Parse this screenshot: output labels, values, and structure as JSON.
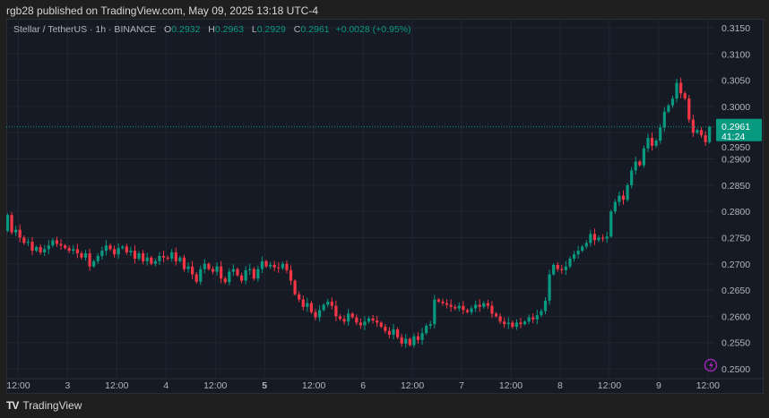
{
  "header": {
    "published": "rgb28 published on TradingView.com, May 09, 2025 13:18 UTC-4"
  },
  "legend": {
    "symbol": "Stellar / TetherUS · 1h · BINANCE",
    "o_label": "O",
    "o": "0.2932",
    "h_label": "H",
    "h": "0.2963",
    "l_label": "L",
    "l": "0.2929",
    "c_label": "C",
    "c": "0.2961",
    "change": "+0.0028 (+0.95%)"
  },
  "price_tag": {
    "price": "0.2961",
    "countdown": "41:24"
  },
  "footer": {
    "brand": "TradingView"
  },
  "colors": {
    "up": "#089981",
    "down": "#f23645",
    "background": "#161a25",
    "grid": "#222631",
    "alert_icon": "#9c27b0"
  },
  "chart_data": {
    "type": "candlestick",
    "interval": "1h",
    "grid": true,
    "ylim": [
      0.25,
      0.315
    ],
    "y_ticks": [
      "0.3150",
      "0.3100",
      "0.3050",
      "0.3000",
      "0.2950",
      "0.2900",
      "0.2850",
      "0.2800",
      "0.2750",
      "0.2700",
      "0.2650",
      "0.2600",
      "0.2550",
      "0.2500"
    ],
    "x_ticks": [
      "12:00",
      "3",
      "12:00",
      "4",
      "12:00",
      "5",
      "12:00",
      "6",
      "12:00",
      "7",
      "12:00",
      "8",
      "12:00",
      "9",
      "12:00"
    ],
    "last_candle": {
      "open": 0.2932,
      "high": 0.2963,
      "low": 0.2929,
      "close": 0.2961
    },
    "close": [
      0.2793,
      0.276,
      0.2765,
      0.275,
      0.274,
      0.2742,
      0.2725,
      0.2732,
      0.2722,
      0.2728,
      0.2735,
      0.2745,
      0.2738,
      0.2735,
      0.273,
      0.2725,
      0.2728,
      0.272,
      0.2712,
      0.272,
      0.2695,
      0.2705,
      0.2715,
      0.2725,
      0.2735,
      0.2728,
      0.2718,
      0.273,
      0.2733,
      0.2722,
      0.2725,
      0.271,
      0.272,
      0.2705,
      0.2712,
      0.27,
      0.2705,
      0.2715,
      0.2712,
      0.271,
      0.2722,
      0.2705,
      0.2712,
      0.269,
      0.2695,
      0.268,
      0.2666,
      0.269,
      0.27,
      0.269,
      0.2685,
      0.2695,
      0.2672,
      0.2665,
      0.2685,
      0.269,
      0.2678,
      0.2668,
      0.2688,
      0.269,
      0.2672,
      0.269,
      0.2705,
      0.2695,
      0.2698,
      0.2693,
      0.2692,
      0.27,
      0.2688,
      0.2668,
      0.2642,
      0.2632,
      0.2618,
      0.2625,
      0.2608,
      0.2598,
      0.2612,
      0.2622,
      0.2628,
      0.262,
      0.26,
      0.2595,
      0.259,
      0.2605,
      0.2598,
      0.2588,
      0.2583,
      0.259,
      0.2596,
      0.2592,
      0.2588,
      0.258,
      0.2572,
      0.2565,
      0.2575,
      0.256,
      0.2548,
      0.2557,
      0.2545,
      0.2562,
      0.2555,
      0.2568,
      0.2582,
      0.2585,
      0.2632,
      0.2628,
      0.2625,
      0.2622,
      0.2618,
      0.2615,
      0.262,
      0.2612,
      0.2608,
      0.2615,
      0.2622,
      0.2618,
      0.2625,
      0.262,
      0.2605,
      0.26,
      0.259,
      0.2585,
      0.2588,
      0.258,
      0.2588,
      0.2585,
      0.259,
      0.2598,
      0.2594,
      0.2602,
      0.261,
      0.263,
      0.268,
      0.2698,
      0.269,
      0.2688,
      0.2695,
      0.271,
      0.2718,
      0.2725,
      0.2733,
      0.274,
      0.2757,
      0.2745,
      0.275,
      0.2748,
      0.2752,
      0.28,
      0.2818,
      0.283,
      0.2822,
      0.285,
      0.2878,
      0.2895,
      0.2888,
      0.292,
      0.294,
      0.2925,
      0.2935,
      0.296,
      0.299,
      0.3002,
      0.3015,
      0.3045,
      0.3025,
      0.3015,
      0.2975,
      0.295,
      0.2955,
      0.2945,
      0.2932,
      0.2961
    ]
  }
}
